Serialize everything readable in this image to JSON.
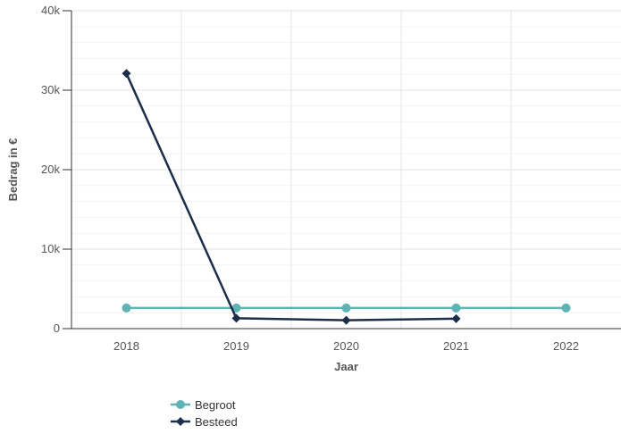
{
  "chart_data": {
    "type": "line",
    "xlabel": "Jaar",
    "ylabel": "Bedrag in €",
    "categories": [
      "2018",
      "2019",
      "2020",
      "2021",
      "2022"
    ],
    "ylim": [
      0,
      40000
    ],
    "yticks": [
      {
        "value": 0,
        "label": "0"
      },
      {
        "value": 10000,
        "label": "10k"
      },
      {
        "value": 20000,
        "label": "20k"
      },
      {
        "value": 30000,
        "label": "30k"
      },
      {
        "value": 40000,
        "label": "40k"
      }
    ],
    "grid": true,
    "legend_position": "bottom-left",
    "series": [
      {
        "name": "Begroot",
        "color": "#5fb3b3",
        "marker": "circle",
        "values": [
          2600,
          2600,
          2600,
          2600,
          2600
        ]
      },
      {
        "name": "Besteed",
        "color": "#1c2e4a",
        "marker": "diamond",
        "values": [
          32100,
          1300,
          1050,
          1250,
          null
        ]
      }
    ]
  }
}
